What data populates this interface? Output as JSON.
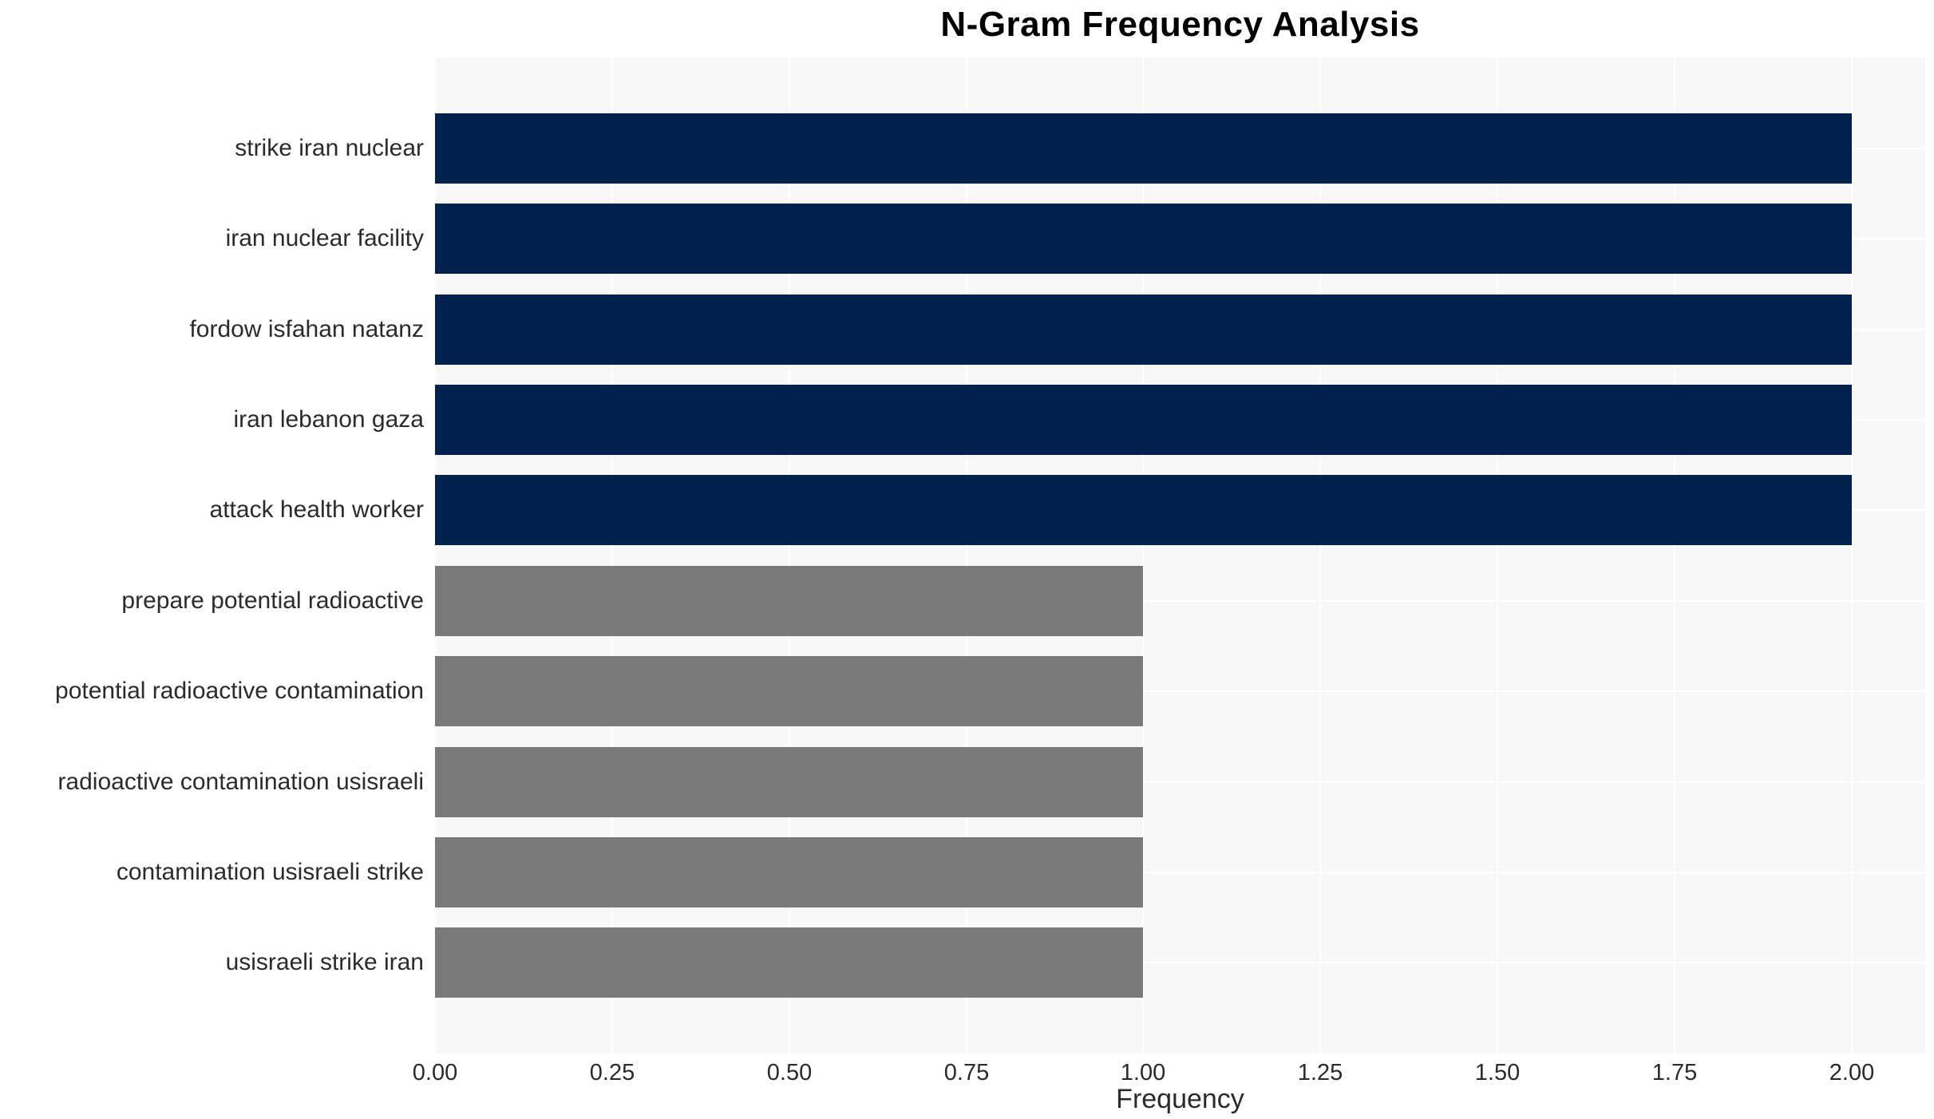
{
  "page": {
    "background_color": "#ffffff"
  },
  "chart_data": {
    "type": "bar",
    "orientation": "horizontal",
    "title": "N-Gram Frequency Analysis",
    "xlabel": "Frequency",
    "ylabel": "",
    "xlim": [
      0,
      2.104
    ],
    "grid": true,
    "legend": false,
    "plot_background_color": "#F7F7F6",
    "grid_color": "#FFFFFF",
    "text_color": "#2b2b2b",
    "title_color": "#000000",
    "bar_colors": {
      "frequency_2": "#00224C",
      "frequency_1": "#7B7A78"
    },
    "categories": [
      "strike iran nuclear",
      "iran nuclear facility",
      "fordow isfahan natanz",
      "iran lebanon gaza",
      "attack health worker",
      "prepare potential radioactive",
      "potential radioactive contamination",
      "radioactive contamination usisraeli",
      "contamination usisraeli strike",
      "usisraeli strike iran"
    ],
    "values": [
      2,
      2,
      2,
      2,
      2,
      1,
      1,
      1,
      1,
      1
    ],
    "bars": [
      {
        "label": "strike iran nuclear",
        "value": 2,
        "color": "#00224C"
      },
      {
        "label": "iran nuclear facility",
        "value": 2,
        "color": "#00224C"
      },
      {
        "label": "fordow isfahan natanz",
        "value": 2,
        "color": "#00224C"
      },
      {
        "label": "iran lebanon gaza",
        "value": 2,
        "color": "#00224C"
      },
      {
        "label": "attack health worker",
        "value": 2,
        "color": "#00224C"
      },
      {
        "label": "prepare potential radioactive",
        "value": 1,
        "color": "#7B7A78"
      },
      {
        "label": "potential radioactive contamination",
        "value": 1,
        "color": "#7B7A78"
      },
      {
        "label": "radioactive contamination usisraeli",
        "value": 1,
        "color": "#7B7A78"
      },
      {
        "label": "contamination usisraeli strike",
        "value": 1,
        "color": "#7B7A78"
      },
      {
        "label": "usisraeli strike iran",
        "value": 1,
        "color": "#7B7A78"
      }
    ],
    "xticks": [
      {
        "value": 0.0,
        "label": "0.00"
      },
      {
        "value": 0.25,
        "label": "0.25"
      },
      {
        "value": 0.5,
        "label": "0.50"
      },
      {
        "value": 0.75,
        "label": "0.75"
      },
      {
        "value": 1.0,
        "label": "1.00"
      },
      {
        "value": 1.25,
        "label": "1.25"
      },
      {
        "value": 1.5,
        "label": "1.50"
      },
      {
        "value": 1.75,
        "label": "1.75"
      },
      {
        "value": 2.0,
        "label": "2.00"
      }
    ]
  }
}
